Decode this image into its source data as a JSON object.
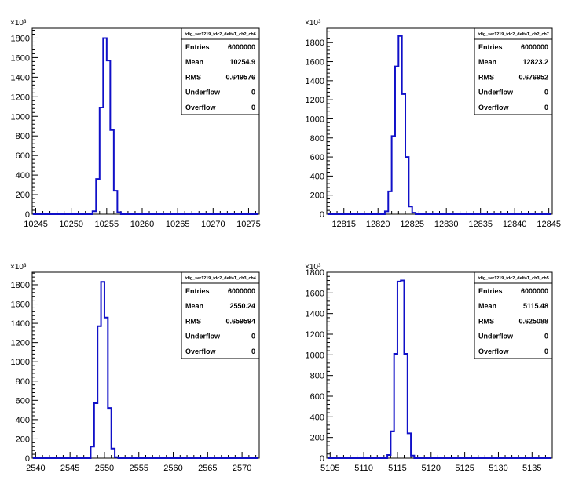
{
  "chart_data": [
    {
      "type": "histogram",
      "title": "",
      "xlabel": "",
      "ylabel": "",
      "y_multiplier_label": "×10³",
      "xlim": [
        10244.5,
        10276.5
      ],
      "ylim": [
        0,
        1900
      ],
      "x_ticks": [
        "10245",
        "10250",
        "10255",
        "10260",
        "10265",
        "10270",
        "10275"
      ],
      "y_ticks": [
        "0",
        "200",
        "400",
        "600",
        "800",
        "1000",
        "1200",
        "1400",
        "1600",
        "1800"
      ],
      "line_color": "#1010c8",
      "bins": [
        {
          "x0": 10253,
          "x1": 10253.5,
          "value": 30
        },
        {
          "x0": 10253.5,
          "x1": 10254,
          "value": 360
        },
        {
          "x0": 10254,
          "x1": 10254.5,
          "value": 1090
        },
        {
          "x0": 10254.5,
          "x1": 10255,
          "value": 1800
        },
        {
          "x0": 10255,
          "x1": 10255.5,
          "value": 1570
        },
        {
          "x0": 10255.5,
          "x1": 10256,
          "value": 860
        },
        {
          "x0": 10256,
          "x1": 10256.5,
          "value": 240
        },
        {
          "x0": 10256.5,
          "x1": 10257,
          "value": 20
        }
      ],
      "stats": {
        "name": "tdig_ser1219_tdc2_deltaT_ch2_ch6",
        "rows": [
          {
            "label": "Entries",
            "value": "6000000"
          },
          {
            "label": "Mean",
            "value": "10254.9"
          },
          {
            "label": "RMS",
            "value": "0.649576"
          },
          {
            "label": "Underflow",
            "value": "0"
          },
          {
            "label": "Overflow",
            "value": "0"
          }
        ]
      }
    },
    {
      "type": "histogram",
      "title": "",
      "xlabel": "",
      "ylabel": "",
      "y_multiplier_label": "×10³",
      "xlim": [
        12812.5,
        12845.5
      ],
      "ylim": [
        0,
        1950
      ],
      "x_ticks": [
        "12815",
        "12820",
        "12825",
        "12830",
        "12835",
        "12840",
        "12845"
      ],
      "y_ticks": [
        "0",
        "200",
        "400",
        "600",
        "800",
        "1000",
        "1200",
        "1400",
        "1600",
        "1800"
      ],
      "line_color": "#1010c8",
      "bins": [
        {
          "x0": 12821,
          "x1": 12821.5,
          "value": 30
        },
        {
          "x0": 12821.5,
          "x1": 12822,
          "value": 240
        },
        {
          "x0": 12822,
          "x1": 12822.5,
          "value": 820
        },
        {
          "x0": 12822.5,
          "x1": 12823,
          "value": 1550
        },
        {
          "x0": 12823,
          "x1": 12823.5,
          "value": 1870
        },
        {
          "x0": 12823.5,
          "x1": 12824,
          "value": 1260
        },
        {
          "x0": 12824,
          "x1": 12824.5,
          "value": 600
        },
        {
          "x0": 12824.5,
          "x1": 12825,
          "value": 80
        },
        {
          "x0": 12825,
          "x1": 12825.5,
          "value": 15
        }
      ],
      "stats": {
        "name": "tdig_ser1219_tdc2_deltaT_ch2_ch7",
        "rows": [
          {
            "label": "Entries",
            "value": "6000000"
          },
          {
            "label": "Mean",
            "value": "12823.2"
          },
          {
            "label": "RMS",
            "value": "0.676952"
          },
          {
            "label": "Underflow",
            "value": "0"
          },
          {
            "label": "Overflow",
            "value": "0"
          }
        ]
      }
    },
    {
      "type": "histogram",
      "title": "",
      "xlabel": "",
      "ylabel": "",
      "y_multiplier_label": "×10³",
      "xlim": [
        2539.5,
        2572.5
      ],
      "ylim": [
        0,
        1930
      ],
      "x_ticks": [
        "2540",
        "2545",
        "2550",
        "2555",
        "2560",
        "2565",
        "2570"
      ],
      "y_ticks": [
        "0",
        "200",
        "400",
        "600",
        "800",
        "1000",
        "1200",
        "1400",
        "1600",
        "1800"
      ],
      "line_color": "#1010c8",
      "bins": [
        {
          "x0": 2548,
          "x1": 2548.5,
          "value": 120
        },
        {
          "x0": 2548.5,
          "x1": 2549,
          "value": 570
        },
        {
          "x0": 2549,
          "x1": 2549.5,
          "value": 1370
        },
        {
          "x0": 2549.5,
          "x1": 2550,
          "value": 1830
        },
        {
          "x0": 2550,
          "x1": 2550.5,
          "value": 1460
        },
        {
          "x0": 2550.5,
          "x1": 2551,
          "value": 520
        },
        {
          "x0": 2551,
          "x1": 2551.5,
          "value": 100
        },
        {
          "x0": 2551.5,
          "x1": 2552,
          "value": 10
        }
      ],
      "stats": {
        "name": "tdig_ser1219_tdc2_deltaT_ch3_ch4",
        "rows": [
          {
            "label": "Entries",
            "value": "6000000"
          },
          {
            "label": "Mean",
            "value": "2550.24"
          },
          {
            "label": "RMS",
            "value": "0.659594"
          },
          {
            "label": "Underflow",
            "value": "0"
          },
          {
            "label": "Overflow",
            "value": "0"
          }
        ]
      }
    },
    {
      "type": "histogram",
      "title": "",
      "xlabel": "",
      "ylabel": "",
      "y_multiplier_label": "×10³",
      "xlim": [
        5104.5,
        5138
      ],
      "ylim": [
        0,
        1800
      ],
      "x_ticks": [
        "5105",
        "5110",
        "5115",
        "5120",
        "5125",
        "5130",
        "5135"
      ],
      "y_ticks": [
        "0",
        "200",
        "400",
        "600",
        "800",
        "1000",
        "1200",
        "1400",
        "1600",
        "1800"
      ],
      "line_color": "#1010c8",
      "bins": [
        {
          "x0": 5113.5,
          "x1": 5114,
          "value": 30
        },
        {
          "x0": 5114,
          "x1": 5114.5,
          "value": 260
        },
        {
          "x0": 5114.5,
          "x1": 5115,
          "value": 1010
        },
        {
          "x0": 5115,
          "x1": 5115.5,
          "value": 1710
        },
        {
          "x0": 5115.5,
          "x1": 5116,
          "value": 1720
        },
        {
          "x0": 5116,
          "x1": 5116.5,
          "value": 1010
        },
        {
          "x0": 5116.5,
          "x1": 5117,
          "value": 240
        },
        {
          "x0": 5117,
          "x1": 5117.5,
          "value": 25
        }
      ],
      "stats": {
        "name": "tdig_ser1219_tdc2_deltaT_ch3_ch5",
        "rows": [
          {
            "label": "Entries",
            "value": "6000000"
          },
          {
            "label": "Mean",
            "value": "5115.48"
          },
          {
            "label": "RMS",
            "value": "0.625088"
          },
          {
            "label": "Underflow",
            "value": "0"
          },
          {
            "label": "Overflow",
            "value": "0"
          }
        ]
      }
    }
  ]
}
